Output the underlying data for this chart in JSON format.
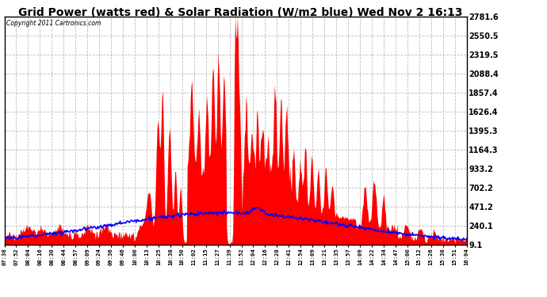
{
  "title": "Grid Power (watts red) & Solar Radiation (W/m2 blue) Wed Nov 2 16:13",
  "copyright": "Copyright 2011 Cartronics.com",
  "background_color": "#ffffff",
  "plot_bg_color": "#ffffff",
  "grid_color": "#bbbbbb",
  "title_fontsize": 10,
  "yticks": [
    9.1,
    240.1,
    471.2,
    702.2,
    933.2,
    1164.3,
    1395.3,
    1626.4,
    1857.4,
    2088.4,
    2319.5,
    2550.5,
    2781.6
  ],
  "xtick_labels": [
    "07:38",
    "07:52",
    "08:04",
    "08:16",
    "08:30",
    "08:44",
    "08:57",
    "09:09",
    "09:24",
    "09:36",
    "09:46",
    "10:00",
    "10:13",
    "10:25",
    "10:38",
    "10:50",
    "11:02",
    "11:15",
    "11:27",
    "11:39",
    "11:52",
    "12:04",
    "12:16",
    "12:28",
    "12:41",
    "12:54",
    "13:09",
    "13:21",
    "13:35",
    "13:57",
    "14:09",
    "14:22",
    "14:34",
    "14:47",
    "15:00",
    "15:12",
    "15:26",
    "15:38",
    "15:51",
    "16:04"
  ],
  "ymin": 9.1,
  "ymax": 2781.6,
  "red_color": "#ff0000",
  "blue_color": "#0000ff",
  "border_color": "#000000"
}
